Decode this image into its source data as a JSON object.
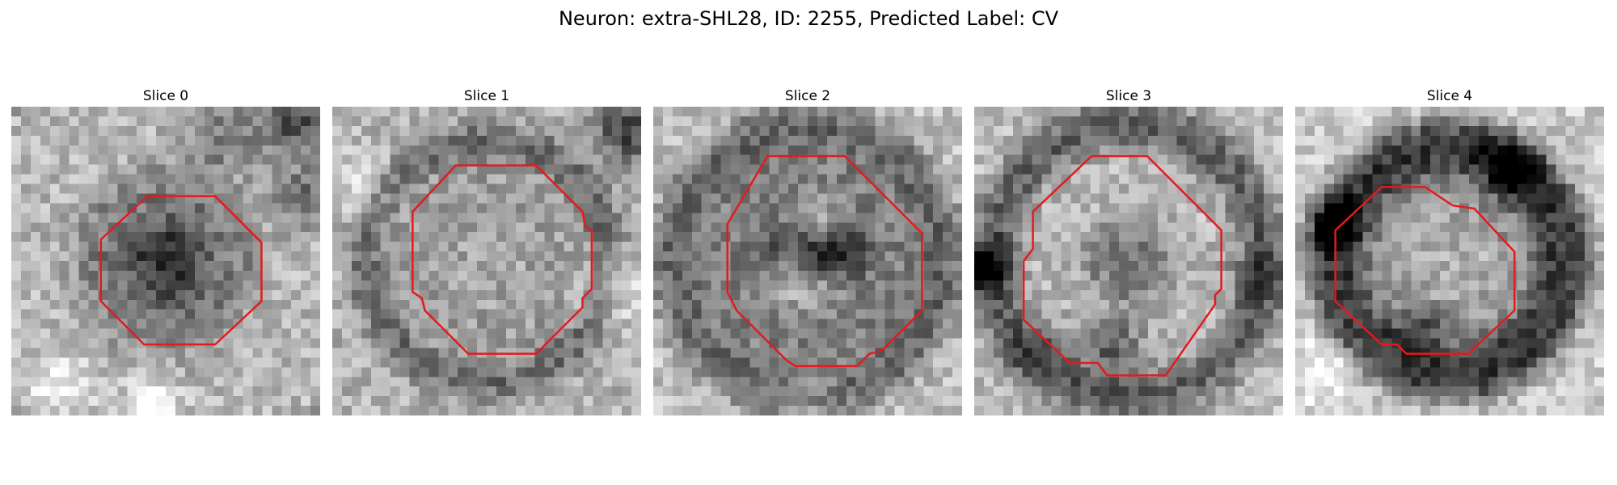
{
  "figure": {
    "title": "Neuron: extra-SHL28, ID: 2255, Predicted Label: CV"
  },
  "contour_color": "#e41a1c",
  "panels": [
    {
      "title": "Slice 0",
      "seed": 11,
      "rings": [
        {
          "r": 0.0,
          "v": 0.2,
          "w": 0.1
        },
        {
          "r": 0.22,
          "v": 0.45,
          "w": 0.1
        },
        {
          "r": 0.36,
          "v": 0.72,
          "w": 0.1
        }
      ],
      "blobs": [
        {
          "u": 0.92,
          "v": 0.05,
          "s": 0.08,
          "a": -0.5
        },
        {
          "u": 0.95,
          "v": 0.28,
          "s": 0.1,
          "a": -0.3
        },
        {
          "u": 0.7,
          "v": 0.1,
          "s": 0.12,
          "a": -0.25
        },
        {
          "u": 0.15,
          "v": 0.9,
          "s": 0.1,
          "a": 0.25
        },
        {
          "u": 0.45,
          "v": 0.97,
          "s": 0.08,
          "a": 0.35
        }
      ],
      "contour": [
        [
          0.44,
          0.29
        ],
        [
          0.66,
          0.29
        ],
        [
          0.81,
          0.44
        ],
        [
          0.81,
          0.63
        ],
        [
          0.66,
          0.77
        ],
        [
          0.43,
          0.77
        ],
        [
          0.29,
          0.63
        ],
        [
          0.29,
          0.43
        ]
      ]
    },
    {
      "title": "Slice 1",
      "seed": 23,
      "rings": [
        {
          "r": 0.0,
          "v": 0.65,
          "w": 0.12
        },
        {
          "r": 0.26,
          "v": 0.62,
          "w": 0.1
        },
        {
          "r": 0.4,
          "v": 0.3,
          "w": 0.05
        },
        {
          "r": 0.5,
          "v": 0.7,
          "w": 0.1
        }
      ],
      "blobs": [
        {
          "u": 0.95,
          "v": 0.08,
          "s": 0.1,
          "a": -0.45
        },
        {
          "u": 0.1,
          "v": 0.25,
          "s": 0.1,
          "a": 0.2
        },
        {
          "u": 0.9,
          "v": 0.6,
          "s": 0.12,
          "a": 0.2
        }
      ],
      "contour": [
        [
          0.4,
          0.19
        ],
        [
          0.66,
          0.19
        ],
        [
          0.81,
          0.34
        ],
        [
          0.82,
          0.39
        ],
        [
          0.84,
          0.4
        ],
        [
          0.84,
          0.59
        ],
        [
          0.81,
          0.62
        ],
        [
          0.81,
          0.65
        ],
        [
          0.66,
          0.8
        ],
        [
          0.44,
          0.8
        ],
        [
          0.3,
          0.66
        ],
        [
          0.29,
          0.62
        ],
        [
          0.26,
          0.6
        ],
        [
          0.26,
          0.34
        ]
      ]
    },
    {
      "title": "Slice 2",
      "seed": 37,
      "rings": [
        {
          "r": 0.0,
          "v": 0.7,
          "w": 0.1
        },
        {
          "r": 0.3,
          "v": 0.5,
          "w": 0.1
        },
        {
          "r": 0.45,
          "v": 0.3,
          "w": 0.06
        },
        {
          "r": 0.56,
          "v": 0.75,
          "w": 0.1
        }
      ],
      "blobs": [
        {
          "u": 0.58,
          "v": 0.47,
          "s": 0.09,
          "a": -0.6
        },
        {
          "u": 0.42,
          "v": 0.45,
          "s": 0.08,
          "a": -0.35
        },
        {
          "u": 0.55,
          "v": 0.35,
          "s": 0.06,
          "a": 0.2
        },
        {
          "u": 0.5,
          "v": 0.92,
          "s": 0.1,
          "a": 0.15
        }
      ],
      "contour": [
        [
          0.37,
          0.16
        ],
        [
          0.62,
          0.16
        ],
        [
          0.87,
          0.41
        ],
        [
          0.87,
          0.66
        ],
        [
          0.74,
          0.79
        ],
        [
          0.7,
          0.8
        ],
        [
          0.66,
          0.84
        ],
        [
          0.46,
          0.84
        ],
        [
          0.43,
          0.82
        ],
        [
          0.27,
          0.66
        ],
        [
          0.24,
          0.6
        ],
        [
          0.24,
          0.38
        ]
      ]
    },
    {
      "title": "Slice 3",
      "seed": 53,
      "rings": [
        {
          "r": 0.0,
          "v": 0.5,
          "w": 0.1
        },
        {
          "r": 0.28,
          "v": 0.72,
          "w": 0.1
        },
        {
          "r": 0.45,
          "v": 0.3,
          "w": 0.07
        },
        {
          "r": 0.58,
          "v": 0.75,
          "w": 0.1
        }
      ],
      "blobs": [
        {
          "u": 0.03,
          "v": 0.52,
          "s": 0.08,
          "a": -0.55
        },
        {
          "u": 0.45,
          "v": 0.78,
          "s": 0.1,
          "a": -0.35
        },
        {
          "u": 0.2,
          "v": 0.8,
          "s": 0.1,
          "a": -0.2
        },
        {
          "u": 0.9,
          "v": 0.55,
          "s": 0.1,
          "a": -0.2
        }
      ],
      "contour": [
        [
          0.38,
          0.16
        ],
        [
          0.56,
          0.16
        ],
        [
          0.8,
          0.4
        ],
        [
          0.8,
          0.59
        ],
        [
          0.78,
          0.61
        ],
        [
          0.78,
          0.64
        ],
        [
          0.62,
          0.87
        ],
        [
          0.43,
          0.87
        ],
        [
          0.4,
          0.83
        ],
        [
          0.31,
          0.83
        ],
        [
          0.16,
          0.69
        ],
        [
          0.16,
          0.5
        ],
        [
          0.19,
          0.46
        ],
        [
          0.19,
          0.34
        ]
      ]
    },
    {
      "title": "Slice 4",
      "seed": 71,
      "rings": [
        {
          "r": 0.0,
          "v": 0.68,
          "w": 0.12
        },
        {
          "r": 0.24,
          "v": 0.62,
          "w": 0.06
        },
        {
          "r": 0.35,
          "v": 0.2,
          "w": 0.09
        },
        {
          "r": 0.58,
          "v": 0.8,
          "w": 0.11
        }
      ],
      "blobs": [
        {
          "u": 0.12,
          "v": 0.38,
          "s": 0.08,
          "a": -0.5
        },
        {
          "u": 0.7,
          "v": 0.2,
          "s": 0.1,
          "a": -0.35
        },
        {
          "u": 0.4,
          "v": 0.72,
          "s": 0.08,
          "a": -0.3
        },
        {
          "u": 0.1,
          "v": 0.85,
          "s": 0.12,
          "a": 0.2
        }
      ],
      "contour": [
        [
          0.28,
          0.26
        ],
        [
          0.42,
          0.26
        ],
        [
          0.51,
          0.32
        ],
        [
          0.58,
          0.33
        ],
        [
          0.71,
          0.47
        ],
        [
          0.71,
          0.66
        ],
        [
          0.56,
          0.8
        ],
        [
          0.36,
          0.8
        ],
        [
          0.33,
          0.77
        ],
        [
          0.28,
          0.77
        ],
        [
          0.13,
          0.63
        ],
        [
          0.13,
          0.4
        ]
      ]
    }
  ]
}
